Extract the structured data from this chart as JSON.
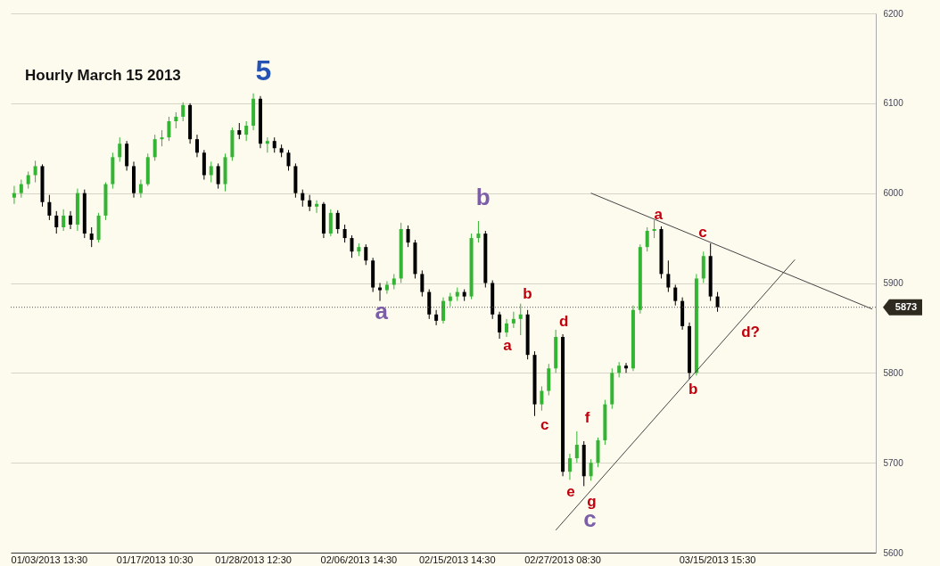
{
  "chart_data": {
    "type": "candlestick",
    "title": "Hourly  March  15  2013",
    "categories": [
      null,
      null,
      null,
      null,
      null,
      "01/03/2013 13:30",
      null,
      null,
      null,
      null,
      null,
      null,
      null,
      null,
      null,
      null,
      null,
      null,
      null,
      null,
      "01/17/2013 10:30",
      null,
      null,
      null,
      null,
      null,
      null,
      null,
      null,
      null,
      null,
      null,
      null,
      null,
      "01/28/2013 12:30",
      null,
      null,
      null,
      null,
      null,
      null,
      null,
      null,
      null,
      null,
      null,
      null,
      null,
      null,
      "02/06/2013 14:30",
      null,
      null,
      null,
      null,
      null,
      null,
      null,
      null,
      null,
      null,
      null,
      null,
      null,
      "02/15/2013 14:30",
      null,
      null,
      null,
      null,
      null,
      null,
      null,
      null,
      null,
      null,
      null,
      null,
      null,
      null,
      "02/27/2013 08:30",
      null,
      null,
      null,
      null,
      null,
      null,
      null,
      null,
      null,
      null,
      null,
      null,
      null,
      null,
      null,
      null,
      null,
      null,
      null,
      null,
      null,
      "03/15/2013 15:30",
      null,
      null,
      null,
      null,
      null,
      null,
      null,
      null,
      null,
      null,
      null,
      null,
      null,
      null,
      null,
      null,
      null,
      null,
      null,
      null,
      null,
      null
    ],
    "ohlc": [
      [
        5995,
        6008,
        5988,
        6000
      ],
      [
        6000,
        6015,
        5995,
        6010
      ],
      [
        6010,
        6024,
        6005,
        6020
      ],
      [
        6020,
        6036,
        6012,
        6030
      ],
      [
        6030,
        6032,
        5985,
        5990
      ],
      [
        5990,
        5998,
        5970,
        5975
      ],
      [
        5975,
        5980,
        5955,
        5962
      ],
      [
        5962,
        5982,
        5958,
        5975
      ],
      [
        5975,
        5980,
        5960,
        5965
      ],
      [
        5965,
        6005,
        5958,
        6000
      ],
      [
        6000,
        6004,
        5950,
        5955
      ],
      [
        5955,
        5962,
        5940,
        5948
      ],
      [
        5948,
        5978,
        5945,
        5975
      ],
      [
        5975,
        6012,
        5970,
        6010
      ],
      [
        6010,
        6045,
        6005,
        6040
      ],
      [
        6040,
        6062,
        6035,
        6055
      ],
      [
        6055,
        6058,
        6025,
        6030
      ],
      [
        6030,
        6035,
        5995,
        6000
      ],
      [
        6000,
        6015,
        5995,
        6010
      ],
      [
        6010,
        6044,
        6008,
        6040
      ],
      [
        6040,
        6065,
        6036,
        6060
      ],
      [
        6060,
        6070,
        6052,
        6062
      ],
      [
        6062,
        6085,
        6058,
        6080
      ],
      [
        6080,
        6090,
        6072,
        6085
      ],
      [
        6085,
        6101,
        6080,
        6098
      ],
      [
        6098,
        6100,
        6055,
        6060
      ],
      [
        6060,
        6065,
        6040,
        6045
      ],
      [
        6045,
        6048,
        6015,
        6020
      ],
      [
        6020,
        6035,
        6012,
        6030
      ],
      [
        6030,
        6033,
        6005,
        6010
      ],
      [
        6010,
        6044,
        6002,
        6040
      ],
      [
        6040,
        6073,
        6036,
        6070
      ],
      [
        6070,
        6078,
        6060,
        6065
      ],
      [
        6065,
        6080,
        6058,
        6075
      ],
      [
        6075,
        6111,
        6070,
        6105
      ],
      [
        6105,
        6108,
        6050,
        6055
      ],
      [
        6055,
        6062,
        6045,
        6058
      ],
      [
        6058,
        6062,
        6045,
        6050
      ],
      [
        6050,
        6054,
        6040,
        6045
      ],
      [
        6045,
        6048,
        6025,
        6030
      ],
      [
        6030,
        6033,
        5995,
        6000
      ],
      [
        6000,
        6004,
        5985,
        5992
      ],
      [
        5992,
        5998,
        5980,
        5985
      ],
      [
        5985,
        5992,
        5978,
        5988
      ],
      [
        5988,
        5990,
        5950,
        5955
      ],
      [
        5955,
        5982,
        5952,
        5978
      ],
      [
        5978,
        5981,
        5955,
        5960
      ],
      [
        5960,
        5965,
        5945,
        5950
      ],
      [
        5950,
        5953,
        5928,
        5935
      ],
      [
        5935,
        5944,
        5930,
        5940
      ],
      [
        5940,
        5943,
        5920,
        5925
      ],
      [
        5925,
        5928,
        5890,
        5895
      ],
      [
        5895,
        5900,
        5880,
        5892
      ],
      [
        5892,
        5902,
        5888,
        5898
      ],
      [
        5898,
        5910,
        5893,
        5905
      ],
      [
        5905,
        5967,
        5900,
        5960
      ],
      [
        5960,
        5964,
        5940,
        5945
      ],
      [
        5945,
        5948,
        5905,
        5910
      ],
      [
        5910,
        5914,
        5885,
        5890
      ],
      [
        5890,
        5893,
        5860,
        5865
      ],
      [
        5865,
        5870,
        5853,
        5858
      ],
      [
        5858,
        5884,
        5855,
        5880
      ],
      [
        5880,
        5889,
        5874,
        5885
      ],
      [
        5885,
        5895,
        5880,
        5890
      ],
      [
        5890,
        5893,
        5880,
        5885
      ],
      [
        5885,
        5955,
        5882,
        5950
      ],
      [
        5950,
        5969,
        5945,
        5955
      ],
      [
        5955,
        5958,
        5895,
        5900
      ],
      [
        5900,
        5903,
        5860,
        5865
      ],
      [
        5865,
        5868,
        5838,
        5845
      ],
      [
        5845,
        5860,
        5840,
        5855
      ],
      [
        5855,
        5868,
        5850,
        5860
      ],
      [
        5860,
        5877,
        5842,
        5865
      ],
      [
        5865,
        5870,
        5815,
        5820
      ],
      [
        5820,
        5824,
        5752,
        5765
      ],
      [
        5765,
        5785,
        5758,
        5780
      ],
      [
        5780,
        5810,
        5775,
        5805
      ],
      [
        5805,
        5848,
        5800,
        5840
      ],
      [
        5840,
        5843,
        5685,
        5690
      ],
      [
        5690,
        5710,
        5681,
        5705
      ],
      [
        5705,
        5735,
        5700,
        5720
      ],
      [
        5720,
        5724,
        5674,
        5685
      ],
      [
        5685,
        5704,
        5680,
        5700
      ],
      [
        5700,
        5728,
        5695,
        5725
      ],
      [
        5725,
        5770,
        5720,
        5765
      ],
      [
        5765,
        5805,
        5760,
        5800
      ],
      [
        5800,
        5812,
        5795,
        5808
      ],
      [
        5808,
        5811,
        5800,
        5805
      ],
      [
        5805,
        5875,
        5802,
        5870
      ],
      [
        5870,
        5943,
        5866,
        5940
      ],
      [
        5940,
        5962,
        5935,
        5958
      ],
      [
        5958,
        5970,
        5950,
        5960
      ],
      [
        5960,
        5963,
        5905,
        5910
      ],
      [
        5910,
        5925,
        5890,
        5895
      ],
      [
        5895,
        5898,
        5875,
        5880
      ],
      [
        5880,
        5884,
        5848,
        5852
      ],
      [
        5852,
        5856,
        5793,
        5800
      ],
      [
        5800,
        5910,
        5797,
        5905
      ],
      [
        5905,
        5935,
        5900,
        5930
      ],
      [
        5930,
        5944,
        5880,
        5885
      ],
      [
        5885,
        5890,
        5868,
        5873
      ],
      null,
      null,
      null,
      null,
      null,
      null,
      null,
      null,
      null,
      null,
      null,
      null,
      null,
      null,
      null,
      null,
      null,
      null,
      null,
      null,
      null,
      null
    ],
    "colors": [
      "#33b533",
      "#33b533",
      "#33b533",
      "#33b533",
      "#000000",
      "#000000",
      "#000000",
      "#33b533",
      "#000000",
      "#33b533",
      "#000000",
      "#000000",
      "#33b533",
      "#33b533",
      "#33b533",
      "#33b533",
      "#000000",
      "#000000",
      "#33b533",
      "#33b533",
      "#33b533",
      "#33b533",
      "#33b533",
      "#33b533",
      "#33b533",
      "#000000",
      "#000000",
      "#000000",
      "#33b533",
      "#000000",
      "#33b533",
      "#33b533",
      "#000000",
      "#33b533",
      "#33b533",
      "#000000",
      "#33b533",
      "#000000",
      "#000000",
      "#000000",
      "#000000",
      "#000000",
      "#000000",
      "#33b533",
      "#000000",
      "#33b533",
      "#000000",
      "#000000",
      "#000000",
      "#33b533",
      "#000000",
      "#000000",
      "#000000",
      "#33b533",
      "#33b533",
      "#33b533",
      "#000000",
      "#000000",
      "#000000",
      "#000000",
      "#000000",
      "#33b533",
      "#33b533",
      "#33b533",
      "#000000",
      "#33b533",
      "#33b533",
      "#000000",
      "#000000",
      "#000000",
      "#33b533",
      "#33b533",
      "#33b533",
      "#000000",
      "#000000",
      "#33b533",
      "#33b533",
      "#33b533",
      "#000000",
      "#33b533",
      "#33b533",
      "#000000",
      "#33b533",
      "#33b533",
      "#33b533",
      "#33b533",
      "#33b533",
      "#000000",
      "#33b533",
      "#33b533",
      "#33b533",
      "#33b533",
      "#000000",
      "#000000",
      "#000000",
      "#000000",
      "#000000",
      "#33b533",
      "#33b533",
      "#000000",
      "#000000",
      null,
      null,
      null,
      null,
      null,
      null,
      null,
      null,
      null,
      null,
      null,
      null,
      null,
      null,
      null,
      null,
      null,
      null,
      null,
      null,
      null,
      null
    ],
    "series": [
      {
        "type": "line",
        "color": "#444444",
        "values": [
          null,
          null,
          null,
          null,
          null,
          null,
          null,
          null,
          null,
          null,
          null,
          null,
          null,
          null,
          null,
          null,
          null,
          null,
          null,
          null,
          null,
          null,
          null,
          null,
          null,
          null,
          null,
          null,
          null,
          null,
          null,
          null,
          null,
          null,
          null,
          null,
          null,
          null,
          null,
          null,
          null,
          null,
          null,
          null,
          null,
          null,
          null,
          null,
          null,
          null,
          null,
          null,
          null,
          null,
          null,
          null,
          null,
          null,
          null,
          null,
          null,
          null,
          null,
          null,
          null,
          null,
          null,
          null,
          null,
          null,
          null,
          null,
          null,
          null,
          null,
          null,
          null,
          null,
          null,
          null,
          null,
          null,
          6000,
          null,
          null,
          null,
          null,
          null,
          null,
          null,
          null,
          null,
          null,
          null,
          null,
          null,
          null,
          null,
          null,
          null,
          null,
          null,
          null,
          null,
          null,
          null,
          null,
          null,
          null,
          null,
          null,
          null,
          null,
          null,
          null,
          null,
          null,
          null,
          null,
          null,
          null,
          null,
          5871
        ]
      },
      {
        "type": "line",
        "color": "#444444",
        "values": [
          null,
          null,
          null,
          null,
          null,
          null,
          null,
          null,
          null,
          null,
          null,
          null,
          null,
          null,
          null,
          null,
          null,
          null,
          null,
          null,
          null,
          null,
          null,
          null,
          null,
          null,
          null,
          null,
          null,
          null,
          null,
          null,
          null,
          null,
          null,
          null,
          null,
          null,
          null,
          null,
          null,
          null,
          null,
          null,
          null,
          null,
          null,
          null,
          null,
          null,
          null,
          null,
          null,
          null,
          null,
          null,
          null,
          null,
          null,
          null,
          null,
          null,
          null,
          null,
          null,
          null,
          null,
          null,
          null,
          null,
          null,
          null,
          null,
          null,
          null,
          null,
          null,
          5625,
          null,
          null,
          null,
          null,
          null,
          null,
          null,
          null,
          null,
          null,
          null,
          null,
          null,
          null,
          null,
          null,
          null,
          null,
          null,
          null,
          null,
          null,
          null,
          null,
          null,
          null,
          null,
          null,
          null,
          null,
          null,
          null,
          null,
          5926,
          null,
          null,
          null,
          null,
          null,
          null,
          null,
          null,
          null,
          null,
          null
        ]
      }
    ],
    "ylim": [
      5600,
      6200
    ],
    "yticks": [
      5600,
      5700,
      5800,
      5900,
      6000,
      6100,
      6200
    ],
    "grid": "y",
    "ref_lines": [
      {
        "axis": "y",
        "value": 5873,
        "label": "5873",
        "line_style": "dotted",
        "color": "#555555"
      }
    ],
    "annotations": [
      "5",
      "a",
      "b",
      "c",
      "a",
      "b",
      "c",
      "d",
      "e",
      "f",
      "g",
      "a",
      "b",
      "c",
      "d?"
    ]
  }
}
